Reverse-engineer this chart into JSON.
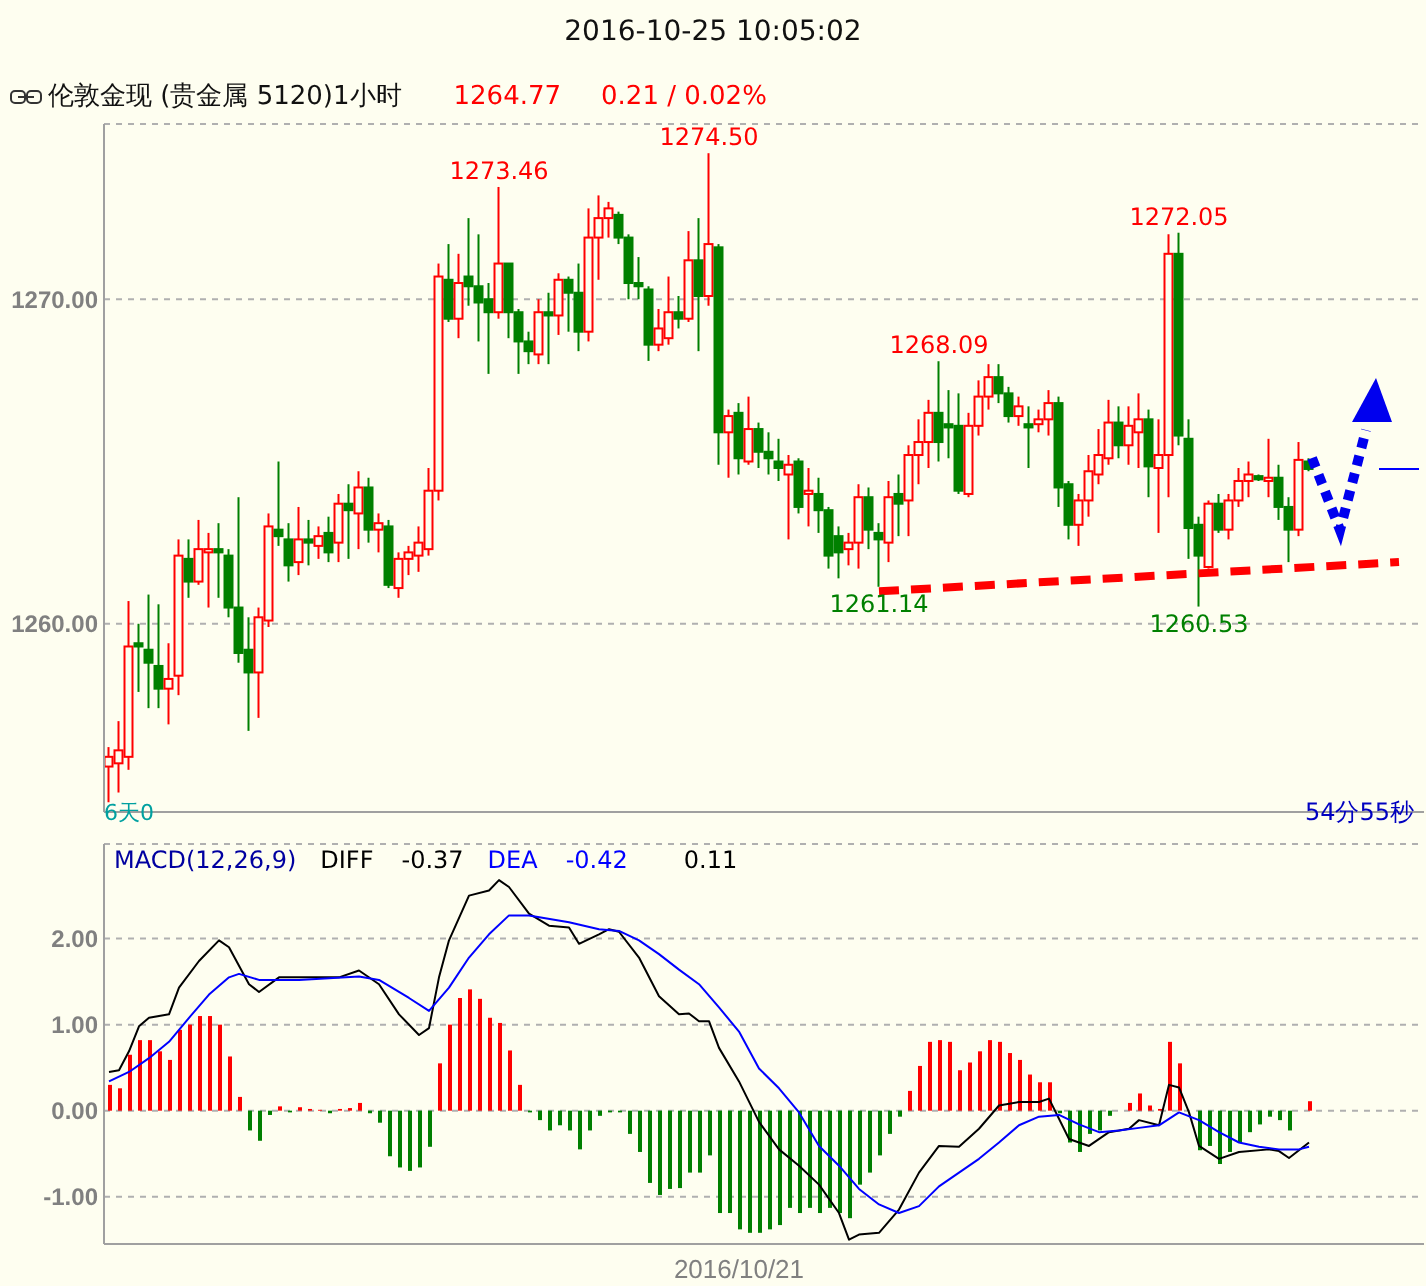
{
  "chart_data": [
    {
      "type": "candlestick",
      "title": "2016-10-25 10:05:02",
      "subtitle": "伦敦金现 (贵金属 5120)1小时",
      "categories": [
        null,
        null,
        null,
        null,
        null,
        null,
        null,
        null,
        null,
        null,
        null,
        null,
        null,
        null,
        null,
        null,
        null,
        null,
        null,
        null,
        null,
        null,
        null,
        null,
        null,
        null,
        null,
        null,
        null,
        null,
        null,
        null,
        null,
        null,
        null,
        null,
        null,
        null,
        null,
        null,
        null,
        null,
        null,
        null,
        null,
        null,
        null,
        null,
        null,
        null,
        null,
        null,
        null,
        null,
        null,
        null,
        null,
        null,
        null,
        null,
        null,
        null,
        null,
        null,
        null,
        null,
        null,
        null,
        null,
        null,
        null,
        null,
        null,
        null,
        null,
        null,
        null,
        null,
        null,
        null,
        null,
        null,
        null,
        null,
        null,
        null,
        null,
        null,
        null,
        null,
        null,
        null,
        null,
        null,
        null,
        null,
        null,
        null,
        null,
        null,
        null,
        null,
        null,
        null,
        null,
        null,
        null,
        null,
        null,
        null,
        null,
        null,
        null,
        null,
        null,
        null,
        null,
        null,
        null,
        null,
        null,
        null,
        null,
        null,
        null,
        null,
        null,
        null,
        null,
        null,
        null,
        null
      ],
      "ohlc": [
        [
          1255.6,
          1256.2,
          1254.5,
          1255.9
        ],
        [
          1255.7,
          1257.0,
          1254.8,
          1256.1
        ],
        [
          1255.9,
          1260.7,
          1255.5,
          1259.3
        ],
        [
          1259.4,
          1260.0,
          1257.9,
          1259.3
        ],
        [
          1259.2,
          1260.9,
          1257.4,
          1258.8
        ],
        [
          1258.7,
          1260.6,
          1257.4,
          1258.0
        ],
        [
          1258.0,
          1259.4,
          1256.9,
          1258.3
        ],
        [
          1258.4,
          1262.6,
          1257.8,
          1262.1
        ],
        [
          1262.0,
          1262.6,
          1260.8,
          1261.3
        ],
        [
          1261.3,
          1263.2,
          1261.2,
          1262.3
        ],
        [
          1262.2,
          1262.8,
          1260.5,
          1262.3
        ],
        [
          1262.3,
          1263.1,
          1260.8,
          1262.2
        ],
        [
          1262.1,
          1262.3,
          1260.2,
          1260.5
        ],
        [
          1260.5,
          1263.9,
          1258.8,
          1259.1
        ],
        [
          1259.2,
          1260.2,
          1256.7,
          1258.5
        ],
        [
          1258.5,
          1260.5,
          1257.1,
          1260.2
        ],
        [
          1260.1,
          1263.4,
          1259.9,
          1263.0
        ],
        [
          1262.9,
          1265.0,
          1262.4,
          1262.7
        ],
        [
          1262.6,
          1263.1,
          1261.3,
          1261.8
        ],
        [
          1261.9,
          1263.6,
          1261.5,
          1262.6
        ],
        [
          1262.6,
          1263.2,
          1261.8,
          1262.5
        ],
        [
          1262.4,
          1263.0,
          1262.0,
          1262.7
        ],
        [
          1262.8,
          1263.3,
          1261.9,
          1262.2
        ],
        [
          1262.5,
          1264.0,
          1261.9,
          1263.7
        ],
        [
          1263.7,
          1264.3,
          1262.0,
          1263.5
        ],
        [
          1263.4,
          1264.7,
          1262.3,
          1264.2
        ],
        [
          1264.2,
          1264.5,
          1262.5,
          1262.9
        ],
        [
          1262.9,
          1263.4,
          1262.2,
          1263.1
        ],
        [
          1263.0,
          1263.2,
          1261.1,
          1261.2
        ],
        [
          1261.1,
          1262.2,
          1260.8,
          1262.0
        ],
        [
          1262.0,
          1262.4,
          1261.5,
          1262.2
        ],
        [
          1262.1,
          1263.0,
          1261.6,
          1262.5
        ],
        [
          1262.3,
          1264.8,
          1262.1,
          1264.1
        ],
        [
          1264.1,
          1271.1,
          1263.8,
          1270.7
        ],
        [
          1270.6,
          1271.7,
          1269.3,
          1269.4
        ],
        [
          1269.4,
          1271.4,
          1268.8,
          1270.5
        ],
        [
          1270.7,
          1272.5,
          1269.8,
          1270.4
        ],
        [
          1270.4,
          1272.0,
          1268.7,
          1269.9
        ],
        [
          1270.0,
          1270.5,
          1267.7,
          1269.6
        ],
        [
          1269.6,
          1273.46,
          1269.4,
          1271.1
        ],
        [
          1271.1,
          1271.1,
          1268.8,
          1269.6
        ],
        [
          1269.6,
          1269.7,
          1267.7,
          1268.7
        ],
        [
          1268.7,
          1269.0,
          1268.0,
          1268.4
        ],
        [
          1268.3,
          1270.0,
          1268.0,
          1269.6
        ],
        [
          1269.6,
          1270.2,
          1268.0,
          1269.5
        ],
        [
          1269.5,
          1270.8,
          1268.9,
          1270.6
        ],
        [
          1270.6,
          1270.7,
          1269.0,
          1270.2
        ],
        [
          1270.2,
          1271.1,
          1268.4,
          1269.0
        ],
        [
          1269.0,
          1272.8,
          1268.7,
          1271.9
        ],
        [
          1271.9,
          1273.2,
          1270.6,
          1272.5
        ],
        [
          1272.5,
          1273.0,
          1271.9,
          1272.8
        ],
        [
          1272.6,
          1272.7,
          1271.7,
          1271.9
        ],
        [
          1271.9,
          1272.0,
          1270.0,
          1270.5
        ],
        [
          1270.5,
          1271.3,
          1270.0,
          1270.4
        ],
        [
          1270.3,
          1270.4,
          1268.1,
          1268.6
        ],
        [
          1268.6,
          1269.7,
          1268.4,
          1269.1
        ],
        [
          1268.8,
          1270.7,
          1268.6,
          1269.6
        ],
        [
          1269.6,
          1270.1,
          1269.1,
          1269.4
        ],
        [
          1269.4,
          1272.1,
          1269.3,
          1271.2
        ],
        [
          1271.2,
          1272.5,
          1268.4,
          1270.1
        ],
        [
          1270.1,
          1274.5,
          1269.8,
          1271.7
        ],
        [
          1271.6,
          1271.7,
          1264.9,
          1265.9
        ],
        [
          1265.9,
          1266.6,
          1264.5,
          1266.4
        ],
        [
          1266.5,
          1266.8,
          1264.6,
          1265.1
        ],
        [
          1265.0,
          1267.0,
          1264.9,
          1266.0
        ],
        [
          1266.0,
          1266.2,
          1264.8,
          1265.3
        ],
        [
          1265.3,
          1265.9,
          1264.6,
          1265.1
        ],
        [
          1265.0,
          1265.7,
          1264.4,
          1264.8
        ],
        [
          1264.6,
          1265.2,
          1262.6,
          1264.9
        ],
        [
          1265.0,
          1265.1,
          1263.4,
          1263.6
        ],
        [
          1264.0,
          1264.8,
          1263.0,
          1264.1
        ],
        [
          1264.0,
          1264.5,
          1262.8,
          1263.5
        ],
        [
          1263.5,
          1263.6,
          1261.7,
          1262.1
        ],
        [
          1262.7,
          1263.0,
          1261.4,
          1262.2
        ],
        [
          1262.3,
          1262.8,
          1261.8,
          1262.5
        ],
        [
          1262.5,
          1264.3,
          1261.7,
          1263.9
        ],
        [
          1263.9,
          1264.2,
          1262.3,
          1262.9
        ],
        [
          1262.8,
          1263.1,
          1261.14,
          1262.6
        ],
        [
          1262.5,
          1264.4,
          1261.9,
          1263.9
        ],
        [
          1264.0,
          1264.6,
          1262.7,
          1263.7
        ],
        [
          1263.8,
          1265.5,
          1262.7,
          1265.2
        ],
        [
          1265.2,
          1266.3,
          1264.3,
          1265.6
        ],
        [
          1265.6,
          1266.9,
          1264.8,
          1266.5
        ],
        [
          1266.5,
          1268.09,
          1265.0,
          1265.6
        ],
        [
          1266.15,
          1267.2,
          1265.1,
          1266.05
        ],
        [
          1266.1,
          1267.1,
          1264.0,
          1264.1
        ],
        [
          1264.0,
          1266.5,
          1263.9,
          1266.1
        ],
        [
          1266.1,
          1267.5,
          1265.8,
          1267.0
        ],
        [
          1267.0,
          1268.0,
          1266.6,
          1267.6
        ],
        [
          1267.6,
          1268.0,
          1266.8,
          1267.1
        ],
        [
          1267.1,
          1267.3,
          1266.2,
          1266.4
        ],
        [
          1266.4,
          1267.0,
          1266.1,
          1266.7
        ],
        [
          1266.15,
          1266.7,
          1264.8,
          1266.05
        ],
        [
          1266.15,
          1266.6,
          1265.9,
          1266.3
        ],
        [
          1266.3,
          1267.2,
          1265.8,
          1266.8
        ],
        [
          1266.8,
          1267.0,
          1263.6,
          1264.2
        ],
        [
          1264.3,
          1264.4,
          1262.6,
          1263.05
        ],
        [
          1263.05,
          1264.0,
          1262.4,
          1263.8
        ],
        [
          1263.8,
          1265.2,
          1263.3,
          1264.7
        ],
        [
          1264.6,
          1266.0,
          1264.3,
          1265.2
        ],
        [
          1265.1,
          1266.9,
          1264.9,
          1266.2
        ],
        [
          1266.2,
          1266.7,
          1265.1,
          1265.5
        ],
        [
          1265.5,
          1266.7,
          1264.9,
          1266.1
        ],
        [
          1265.9,
          1267.1,
          1264.8,
          1266.3
        ],
        [
          1266.3,
          1266.6,
          1263.9,
          1264.85
        ],
        [
          1264.8,
          1266.3,
          1262.8,
          1265.2
        ],
        [
          1265.2,
          1272.0,
          1263.9,
          1271.4
        ],
        [
          1271.4,
          1272.05,
          1265.5,
          1265.8
        ],
        [
          1265.7,
          1266.3,
          1262.0,
          1262.95
        ],
        [
          1263.05,
          1263.3,
          1260.53,
          1262.1
        ],
        [
          1261.75,
          1263.8,
          1261.7,
          1263.7
        ],
        [
          1263.7,
          1264.0,
          1262.8,
          1262.9
        ],
        [
          1262.9,
          1264.0,
          1262.6,
          1263.8
        ],
        [
          1263.8,
          1264.8,
          1263.6,
          1264.4
        ],
        [
          1264.4,
          1265.0,
          1263.9,
          1264.6
        ],
        [
          1264.55,
          1264.6,
          1264.4,
          1264.45
        ],
        [
          1264.4,
          1265.7,
          1263.9,
          1264.5
        ],
        [
          1264.5,
          1264.9,
          1263.2,
          1263.6
        ],
        [
          1263.6,
          1263.9,
          1261.9,
          1262.9
        ],
        [
          1262.9,
          1265.6,
          1262.7,
          1265.05
        ],
        [
          1265.0,
          1265.1,
          1264.7,
          1264.77
        ],
        null,
        null,
        null,
        null,
        null,
        null,
        null,
        null,
        null,
        null,
        null
      ],
      "colors": [
        "#ff0000",
        "#ff0000",
        "#ff0000",
        "#008000",
        "#008000",
        "#008000",
        "#ff0000",
        "#ff0000",
        "#008000",
        "#ff0000",
        "#ff0000",
        "#008000",
        "#008000",
        "#008000",
        "#008000",
        "#ff0000",
        "#ff0000",
        "#008000",
        "#008000",
        "#ff0000",
        "#008000",
        "#ff0000",
        "#008000",
        "#ff0000",
        "#008000",
        "#ff0000",
        "#008000",
        "#ff0000",
        "#008000",
        "#ff0000",
        "#ff0000",
        "#ff0000",
        "#ff0000",
        "#ff0000",
        "#008000",
        "#ff0000",
        "#008000",
        "#008000",
        "#008000",
        "#ff0000",
        "#008000",
        "#008000",
        "#008000",
        "#ff0000",
        "#008000",
        "#ff0000",
        "#008000",
        "#008000",
        "#ff0000",
        "#ff0000",
        "#ff0000",
        "#008000",
        "#008000",
        "#008000",
        "#008000",
        "#ff0000",
        "#ff0000",
        "#008000",
        "#ff0000",
        "#008000",
        "#ff0000",
        "#008000",
        "#ff0000",
        "#008000",
        "#ff0000",
        "#008000",
        "#008000",
        "#008000",
        "#ff0000",
        "#008000",
        "#ff0000",
        "#008000",
        "#008000",
        "#008000",
        "#ff0000",
        "#ff0000",
        "#008000",
        "#008000",
        "#ff0000",
        "#008000",
        "#ff0000",
        "#ff0000",
        "#ff0000",
        "#008000",
        "#008000",
        "#008000",
        "#ff0000",
        "#ff0000",
        "#ff0000",
        "#008000",
        "#008000",
        "#ff0000",
        "#008000",
        "#ff0000",
        "#ff0000",
        "#008000",
        "#008000",
        "#ff0000",
        "#ff0000",
        "#ff0000",
        "#ff0000",
        "#008000",
        "#ff0000",
        "#ff0000",
        "#008000",
        "#ff0000",
        "#ff0000",
        "#008000",
        "#008000",
        "#008000",
        "#ff0000",
        "#008000",
        "#ff0000",
        "#ff0000",
        "#ff0000",
        "#008000",
        "#ff0000",
        "#008000",
        "#008000",
        "#ff0000",
        "#008000",
        null,
        null,
        null,
        null,
        null,
        null,
        null,
        null,
        null,
        null,
        null
      ],
      "series": [
        {
          "type": "line",
          "color": "#ff0000",
          "line_style": "dashed",
          "values": [
            null,
            null,
            null,
            null,
            null,
            null,
            null,
            null,
            null,
            null,
            null,
            null,
            null,
            null,
            null,
            null,
            null,
            null,
            null,
            null,
            null,
            null,
            null,
            null,
            null,
            null,
            null,
            null,
            null,
            null,
            null,
            null,
            null,
            null,
            null,
            null,
            null,
            null,
            null,
            null,
            null,
            null,
            null,
            null,
            null,
            null,
            null,
            null,
            null,
            null,
            null,
            null,
            null,
            null,
            null,
            null,
            null,
            null,
            null,
            null,
            null,
            null,
            null,
            null,
            null,
            null,
            null,
            null,
            null,
            null,
            null,
            null,
            null,
            null,
            null,
            null,
            null,
            1261.0,
            null,
            null,
            null,
            null,
            null,
            null,
            null,
            null,
            null,
            null,
            null,
            null,
            null,
            null,
            null,
            null,
            null,
            null,
            null,
            null,
            null,
            null,
            null,
            null,
            null,
            null,
            null,
            null,
            null,
            null,
            null,
            null,
            null,
            null,
            null,
            null,
            null,
            null,
            null,
            null,
            null,
            null,
            null,
            null,
            null,
            null,
            null,
            null,
            null,
            null,
            null,
            1261.9,
            null,
            null
          ]
        },
        {
          "type": "line",
          "color": "#0000ff",
          "values": [
            null,
            null,
            null,
            null,
            null,
            null,
            null,
            null,
            null,
            null,
            null,
            null,
            null,
            null,
            null,
            null,
            null,
            null,
            null,
            null,
            null,
            null,
            null,
            null,
            null,
            null,
            null,
            null,
            null,
            null,
            null,
            null,
            null,
            null,
            null,
            null,
            null,
            null,
            null,
            null,
            null,
            null,
            null,
            null,
            null,
            null,
            null,
            null,
            null,
            null,
            null,
            null,
            null,
            null,
            null,
            null,
            null,
            null,
            null,
            null,
            null,
            null,
            null,
            null,
            null,
            null,
            null,
            null,
            null,
            null,
            null,
            null,
            null,
            null,
            null,
            null,
            null,
            null,
            null,
            null,
            null,
            null,
            null,
            null,
            null,
            null,
            null,
            null,
            null,
            null,
            null,
            null,
            null,
            null,
            null,
            null,
            null,
            null,
            null,
            null,
            null,
            null,
            null,
            null,
            null,
            null,
            null,
            null,
            null,
            null,
            null,
            null,
            null,
            null,
            null,
            null,
            null,
            null,
            null,
            null,
            null,
            null,
            null,
            null,
            null,
            null,
            null,
            1264.77,
            1264.77,
            1264.77,
            1264.77,
            1264.77
          ]
        }
      ],
      "ylim": [
        1254.2,
        1275.4
      ],
      "yticks": [
        {
          "value": 1260,
          "label": "1260.00"
        },
        {
          "value": 1270,
          "label": "1270.00"
        }
      ],
      "grid": "y",
      "tick_labels": "y",
      "annotations": [
        "1264.77",
        "0.21 / 0.02%",
        "6天0",
        "54分55秒",
        {
          "text": "1273.46",
          "y": 1273.46
        },
        {
          "text": "1274.50",
          "y": 1274.5
        },
        {
          "text": "1268.09",
          "y": 1268.09
        },
        {
          "text": "1272.05",
          "y": 1272.05
        },
        {
          "text": "1261.14",
          "y": 1261.14
        },
        {
          "text": "1260.53",
          "y": 1260.53
        }
      ]
    },
    {
      "type": "bar",
      "title": "MACD(12,26,9)",
      "categories": [
        null,
        null,
        null,
        null,
        null,
        null,
        null,
        null,
        null,
        null,
        null,
        null,
        null,
        null,
        null,
        null,
        null,
        null,
        null,
        null,
        null,
        null,
        null,
        null,
        null,
        null,
        null,
        null,
        null,
        null,
        null,
        null,
        null,
        null,
        null,
        null,
        null,
        null,
        null,
        null,
        null,
        null,
        null,
        null,
        null,
        null,
        null,
        null,
        null,
        null,
        null,
        null,
        null,
        null,
        null,
        null,
        null,
        null,
        null,
        null,
        null,
        null,
        null,
        "2016/10/21",
        null,
        null,
        null,
        null,
        null,
        null,
        null,
        null,
        null,
        null,
        null,
        null,
        null,
        null,
        null,
        null,
        null,
        null,
        null,
        null,
        null,
        null,
        null,
        null,
        null,
        null,
        null,
        null,
        null,
        null,
        null,
        null,
        null,
        null,
        null,
        null,
        null,
        null,
        null,
        null,
        null,
        null,
        null,
        null,
        null,
        null,
        null,
        null,
        null,
        null,
        null,
        null,
        null,
        null,
        null,
        null,
        null,
        null,
        null,
        null,
        null,
        null,
        null,
        null,
        null,
        null,
        null,
        null
      ],
      "series": [
        {
          "values": [
            0.3,
            0.26,
            0.65,
            0.82,
            0.82,
            0.69,
            0.59,
            0.94,
            1.0,
            1.1,
            1.1,
            1.0,
            0.63,
            0.16,
            -0.23,
            -0.35,
            -0.05,
            0.05,
            -0.02,
            0.04,
            0.02,
            0.01,
            -0.03,
            0.02,
            0.03,
            0.09,
            -0.03,
            -0.14,
            -0.53,
            -0.66,
            -0.7,
            -0.66,
            -0.42,
            0.55,
            1.0,
            1.31,
            1.41,
            1.3,
            1.08,
            1.02,
            0.7,
            0.3,
            -0.02,
            -0.11,
            -0.23,
            -0.17,
            -0.23,
            -0.45,
            -0.23,
            -0.06,
            -0.02,
            -0.02,
            -0.27,
            -0.48,
            -0.84,
            -0.98,
            -0.91,
            -0.9,
            -0.72,
            -0.72,
            -0.52,
            -1.19,
            -1.19,
            -1.38,
            -1.42,
            -1.42,
            -1.38,
            -1.33,
            -1.13,
            -1.19,
            -1.13,
            -1.19,
            -1.13,
            -1.19,
            -1.25,
            -0.86,
            -0.72,
            -0.52,
            -0.27,
            -0.07,
            0.23,
            0.52,
            0.8,
            0.82,
            0.8,
            0.47,
            0.56,
            0.69,
            0.82,
            0.8,
            0.67,
            0.59,
            0.42,
            0.33,
            0.33,
            -0.03,
            -0.37,
            -0.48,
            -0.27,
            -0.23,
            -0.06,
            null,
            0.09,
            0.2,
            0.06,
            0.02,
            0.8,
            0.55,
            null,
            -0.46,
            -0.41,
            -0.62,
            -0.48,
            -0.37,
            -0.25,
            -0.16,
            -0.07,
            -0.11,
            -0.23,
            null,
            0.11,
            null,
            null,
            null,
            null,
            null,
            null,
            null,
            null,
            null,
            null,
            null
          ],
          "colors": [
            "#ff0000",
            "#ff0000",
            "#ff0000",
            "#ff0000",
            "#ff0000",
            "#ff0000",
            "#ff0000",
            "#ff0000",
            "#ff0000",
            "#ff0000",
            "#ff0000",
            "#ff0000",
            "#ff0000",
            "#ff0000",
            "#008000",
            "#008000",
            "#008000",
            "#ff0000",
            "#008000",
            "#ff0000",
            "#ff0000",
            "#ff0000",
            "#008000",
            "#ff0000",
            "#ff0000",
            "#ff0000",
            "#008000",
            "#008000",
            "#008000",
            "#008000",
            "#008000",
            "#008000",
            "#008000",
            "#ff0000",
            "#ff0000",
            "#ff0000",
            "#ff0000",
            "#ff0000",
            "#ff0000",
            "#ff0000",
            "#ff0000",
            "#ff0000",
            "#008000",
            "#008000",
            "#008000",
            "#008000",
            "#008000",
            "#008000",
            "#008000",
            "#008000",
            "#008000",
            "#008000",
            "#008000",
            "#008000",
            "#008000",
            "#008000",
            "#008000",
            "#008000",
            "#008000",
            "#008000",
            "#008000",
            "#008000",
            "#008000",
            "#008000",
            "#008000",
            "#008000",
            "#008000",
            "#008000",
            "#008000",
            "#008000",
            "#008000",
            "#008000",
            "#008000",
            "#008000",
            "#008000",
            "#008000",
            "#008000",
            "#008000",
            "#008000",
            "#008000",
            "#ff0000",
            "#ff0000",
            "#ff0000",
            "#ff0000",
            "#ff0000",
            "#ff0000",
            "#ff0000",
            "#ff0000",
            "#ff0000",
            "#ff0000",
            "#ff0000",
            "#ff0000",
            "#ff0000",
            "#ff0000",
            "#ff0000",
            "#008000",
            "#008000",
            "#008000",
            "#008000",
            "#008000",
            "#008000",
            null,
            "#ff0000",
            "#ff0000",
            "#ff0000",
            "#ff0000",
            "#ff0000",
            "#ff0000",
            null,
            "#008000",
            "#008000",
            "#008000",
            "#008000",
            "#008000",
            "#008000",
            "#008000",
            "#008000",
            "#008000",
            "#008000",
            null,
            "#ff0000",
            null,
            null,
            null,
            null,
            null,
            null,
            null,
            null,
            null,
            null,
            null
          ]
        },
        {
          "type": "line",
          "name": "DIFF",
          "color": "#000000",
          "values": [
            0.45,
            0.47,
            0.69,
            0.98,
            1.08,
            null,
            1.12,
            1.43,
            null,
            1.74,
            null,
            1.98,
            1.9,
            null,
            1.47,
            1.38,
            null,
            1.55,
            null,
            1.55,
            null,
            1.55,
            null,
            1.55,
            null,
            1.63,
            null,
            1.47,
            null,
            1.12,
            null,
            0.88,
            0.96,
            1.55,
            1.98,
            null,
            2.5,
            null,
            2.56,
            2.68,
            2.6,
            null,
            2.29,
            null,
            2.15,
            null,
            2.13,
            1.94,
            null,
            2.05,
            2.11,
            2.08,
            null,
            1.78,
            null,
            1.33,
            null,
            1.12,
            1.13,
            1.04,
            1.04,
            0.73,
            null,
            0.34,
            null,
            -0.13,
            null,
            -0.45,
            null,
            -0.64,
            null,
            -0.86,
            null,
            -1.19,
            -1.5,
            -1.44,
            null,
            -1.42,
            null,
            -1.15,
            null,
            -0.72,
            null,
            -0.41,
            null,
            -0.42,
            null,
            -0.21,
            null,
            0.06,
            null,
            0.1,
            null,
            0.1,
            0.14,
            null,
            -0.33,
            null,
            -0.41,
            null,
            -0.25,
            null,
            -0.21,
            -0.11,
            null,
            -0.17,
            0.3,
            0.27,
            -0.02,
            -0.41,
            null,
            -0.56,
            null,
            -0.48,
            null,
            null,
            -0.45,
            -0.47,
            -0.55,
            null,
            -0.37,
            null,
            null,
            null,
            null,
            null,
            null,
            null,
            null,
            null,
            null,
            null
          ]
        },
        {
          "type": "line",
          "name": "DEA",
          "color": "#0000ff",
          "values": [
            0.34,
            null,
            0.45,
            null,
            0.61,
            null,
            0.8,
            null,
            1.08,
            null,
            1.35,
            null,
            1.55,
            1.59,
            null,
            1.52,
            null,
            null,
            null,
            1.52,
            null,
            null,
            null,
            null,
            null,
            1.56,
            null,
            1.52,
            null,
            null,
            1.31,
            null,
            1.16,
            null,
            1.43,
            null,
            1.78,
            null,
            2.05,
            null,
            2.27,
            null,
            2.27,
            null,
            null,
            null,
            2.19,
            null,
            null,
            2.11,
            null,
            2.09,
            null,
            1.98,
            null,
            1.82,
            null,
            1.64,
            null,
            1.47,
            null,
            1.2,
            null,
            0.92,
            null,
            0.49,
            null,
            0.26,
            null,
            -0.02,
            null,
            -0.41,
            null,
            -0.64,
            null,
            -0.91,
            null,
            -1.09,
            null,
            -1.19,
            null,
            -1.11,
            null,
            -0.88,
            null,
            -0.72,
            null,
            -0.56,
            null,
            -0.37,
            null,
            -0.17,
            null,
            -0.07,
            null,
            -0.05,
            null,
            -0.16,
            null,
            -0.25,
            null,
            -0.23,
            null,
            -0.2,
            null,
            -0.17,
            null,
            -0.02,
            null,
            -0.11,
            null,
            -0.25,
            null,
            -0.37,
            null,
            -0.42,
            null,
            -0.45,
            null,
            -0.45,
            -0.42,
            null,
            null,
            null,
            null,
            null,
            null,
            null,
            null,
            null,
            null,
            null
          ]
        }
      ],
      "ylim": [
        -1.55,
        3.1
      ],
      "yticks": [
        {
          "value": -1,
          "label": "-1.00"
        },
        {
          "value": 0,
          "label": "0.00"
        },
        {
          "value": 1,
          "label": "1.00"
        },
        {
          "value": 2,
          "label": "2.00"
        }
      ],
      "grid": "y",
      "legend": "top left",
      "annotations": [
        "-0.37",
        "-0.42",
        "0.11"
      ]
    }
  ]
}
